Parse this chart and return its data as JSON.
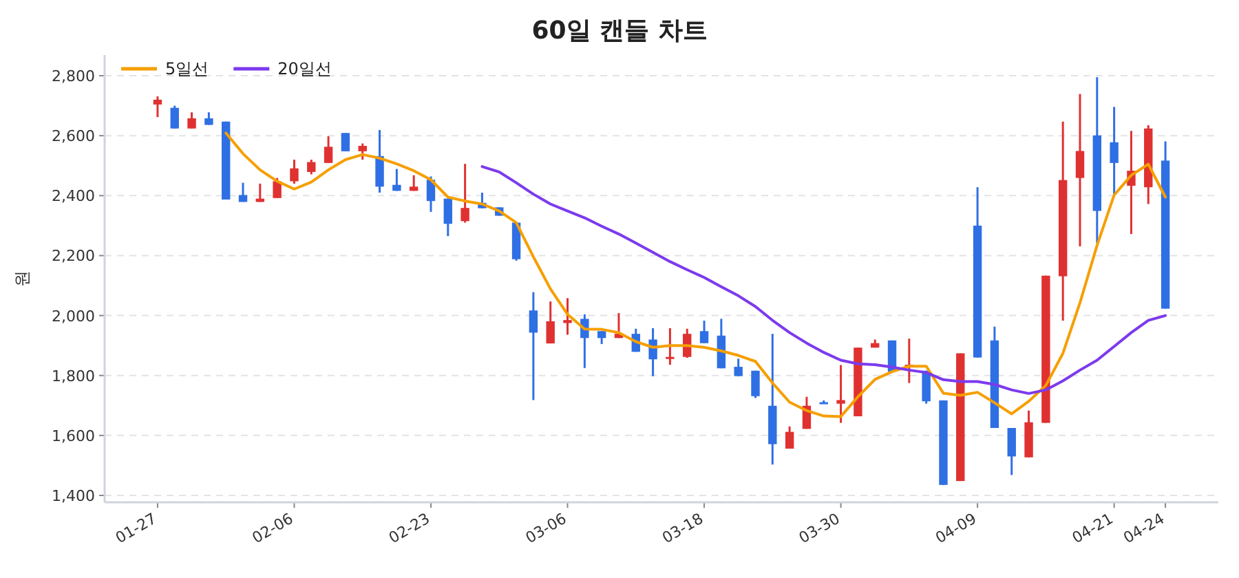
{
  "chart_data": {
    "type": "candlestick",
    "title": "60일 캔들 차트",
    "ylabel": "원",
    "categories": [
      "01-27",
      null,
      null,
      null,
      null,
      null,
      null,
      null,
      "02-06",
      null,
      null,
      null,
      null,
      null,
      null,
      null,
      "02-23",
      null,
      null,
      null,
      null,
      null,
      null,
      null,
      "03-06",
      null,
      null,
      null,
      null,
      null,
      null,
      null,
      "03-18",
      null,
      null,
      null,
      null,
      null,
      null,
      null,
      "03-30",
      null,
      null,
      null,
      null,
      null,
      null,
      null,
      "04-09",
      null,
      null,
      null,
      null,
      null,
      null,
      null,
      "04-21",
      null,
      null,
      "04-24"
    ],
    "ohlc": [
      [
        2704,
        2731,
        2662,
        2720
      ],
      [
        2693,
        2700,
        2624,
        2624
      ],
      [
        2624,
        2678,
        2624,
        2658
      ],
      [
        2658,
        2678,
        2636,
        2636
      ],
      [
        2647,
        2647,
        2387,
        2387
      ],
      [
        2402,
        2443,
        2379,
        2379
      ],
      [
        2379,
        2440,
        2379,
        2390
      ],
      [
        2392,
        2459,
        2392,
        2448
      ],
      [
        2448,
        2520,
        2440,
        2491
      ],
      [
        2479,
        2520,
        2471,
        2512
      ],
      [
        2509,
        2598,
        2509,
        2563
      ],
      [
        2609,
        2609,
        2548,
        2548
      ],
      [
        2548,
        2574,
        2520,
        2566
      ],
      [
        2532,
        2619,
        2410,
        2430
      ],
      [
        2436,
        2489,
        2416,
        2416
      ],
      [
        2416,
        2468,
        2416,
        2430
      ],
      [
        2453,
        2464,
        2346,
        2382
      ],
      [
        2390,
        2390,
        2265,
        2306
      ],
      [
        2315,
        2506,
        2310,
        2359
      ],
      [
        2376,
        2410,
        2358,
        2358
      ],
      [
        2361,
        2361,
        2333,
        2333
      ],
      [
        2310,
        2310,
        2183,
        2188
      ],
      [
        2017,
        2078,
        1718,
        1943
      ],
      [
        1907,
        2047,
        1907,
        1981
      ],
      [
        1975,
        2058,
        1936,
        1985
      ],
      [
        1989,
        2004,
        1825,
        1925
      ],
      [
        1948,
        1948,
        1905,
        1925
      ],
      [
        1925,
        2008,
        1925,
        1939
      ],
      [
        1939,
        1956,
        1879,
        1879
      ],
      [
        1920,
        1958,
        1798,
        1854
      ],
      [
        1856,
        1958,
        1836,
        1862
      ],
      [
        1862,
        1956,
        1859,
        1939
      ],
      [
        1948,
        1983,
        1908,
        1908
      ],
      [
        1933,
        1989,
        1824,
        1824
      ],
      [
        1829,
        1856,
        1798,
        1798
      ],
      [
        1816,
        1816,
        1725,
        1731
      ],
      [
        1699,
        1939,
        1503,
        1571
      ],
      [
        1556,
        1630,
        1556,
        1612
      ],
      [
        1622,
        1729,
        1622,
        1699
      ],
      [
        1711,
        1717,
        1706,
        1706
      ],
      [
        1706,
        1835,
        1642,
        1718
      ],
      [
        1664,
        1893,
        1664,
        1893
      ],
      [
        1893,
        1920,
        1893,
        1908
      ],
      [
        1917,
        1917,
        1813,
        1813
      ],
      [
        1830,
        1923,
        1775,
        1836
      ],
      [
        1816,
        1816,
        1706,
        1714
      ],
      [
        1717,
        1717,
        1435,
        1435
      ],
      [
        1448,
        1874,
        1448,
        1874
      ],
      [
        2300,
        2428,
        1860,
        1860
      ],
      [
        1917,
        1963,
        1625,
        1625
      ],
      [
        1625,
        1625,
        1468,
        1530
      ],
      [
        1527,
        1683,
        1527,
        1644
      ],
      [
        1642,
        2133,
        1642,
        2133
      ],
      [
        2131,
        2647,
        1983,
        2452
      ],
      [
        2459,
        2739,
        2231,
        2549
      ],
      [
        2601,
        2795,
        2242,
        2349
      ],
      [
        2578,
        2696,
        2402,
        2509
      ],
      [
        2433,
        2616,
        2272,
        2483
      ],
      [
        2428,
        2635,
        2372,
        2624
      ],
      [
        2517,
        2581,
        2023,
        2023
      ]
    ],
    "colors": [
      "#e03131",
      "#2f6fe4",
      "#e03131",
      "#2f6fe4",
      "#2f6fe4",
      "#2f6fe4",
      "#e03131",
      "#e03131",
      "#e03131",
      "#e03131",
      "#e03131",
      "#2f6fe4",
      "#e03131",
      "#2f6fe4",
      "#2f6fe4",
      "#e03131",
      "#2f6fe4",
      "#2f6fe4",
      "#e03131",
      "#2f6fe4",
      "#2f6fe4",
      "#2f6fe4",
      "#2f6fe4",
      "#e03131",
      "#e03131",
      "#2f6fe4",
      "#2f6fe4",
      "#e03131",
      "#2f6fe4",
      "#2f6fe4",
      "#e03131",
      "#e03131",
      "#2f6fe4",
      "#2f6fe4",
      "#2f6fe4",
      "#2f6fe4",
      "#2f6fe4",
      "#e03131",
      "#e03131",
      "#2f6fe4",
      "#e03131",
      "#e03131",
      "#e03131",
      "#2f6fe4",
      "#e03131",
      "#2f6fe4",
      "#2f6fe4",
      "#e03131",
      "#2f6fe4",
      "#2f6fe4",
      "#2f6fe4",
      "#e03131",
      "#e03131",
      "#e03131",
      "#e03131",
      "#2f6fe4",
      "#2f6fe4",
      "#e03131",
      "#e03131",
      "#2f6fe4"
    ],
    "series": [
      {
        "name": "5일선",
        "type": "line",
        "color": "#f59f00",
        "values": [
          null,
          null,
          null,
          null,
          2609,
          2540,
          2486,
          2448,
          2422,
          2445,
          2486,
          2520,
          2537,
          2525,
          2506,
          2483,
          2453,
          2395,
          2382,
          2372,
          2349,
          2310,
          2196,
          2089,
          2004,
          1955,
          1954,
          1943,
          1913,
          1894,
          1900,
          1900,
          1894,
          1882,
          1867,
          1847,
          1775,
          1711,
          1683,
          1665,
          1663,
          1729,
          1787,
          1813,
          1831,
          1831,
          1741,
          1734,
          1744,
          1709,
          1672,
          1714,
          1767,
          1874,
          2043,
          2234,
          2402,
          2468,
          2505,
          2395
        ]
      },
      {
        "name": "20일선",
        "type": "line",
        "color": "#7c3aed",
        "values": [
          null,
          null,
          null,
          null,
          null,
          null,
          null,
          null,
          null,
          null,
          null,
          null,
          null,
          null,
          null,
          null,
          null,
          null,
          null,
          2497,
          2479,
          2443,
          2405,
          2372,
          2349,
          2326,
          2298,
          2272,
          2242,
          2211,
          2180,
          2153,
          2127,
          2096,
          2066,
          2030,
          1984,
          1943,
          1908,
          1877,
          1851,
          1839,
          1836,
          1828,
          1818,
          1810,
          1786,
          1780,
          1780,
          1770,
          1752,
          1740,
          1752,
          1782,
          1818,
          1851,
          1897,
          1943,
          1984,
          2000
        ]
      }
    ],
    "ylim": [
      1377,
      2869
    ],
    "yticks": [
      {
        "value": 1400,
        "label": "1,400"
      },
      {
        "value": 1600,
        "label": "1,600"
      },
      {
        "value": 1800,
        "label": "1,800"
      },
      {
        "value": 2000,
        "label": "2,000"
      },
      {
        "value": 2200,
        "label": "2,200"
      },
      {
        "value": 2400,
        "label": "2,400"
      },
      {
        "value": 2600,
        "label": "2,600"
      },
      {
        "value": 2800,
        "label": "2,800"
      }
    ],
    "grid": "y",
    "legend": "top left"
  }
}
